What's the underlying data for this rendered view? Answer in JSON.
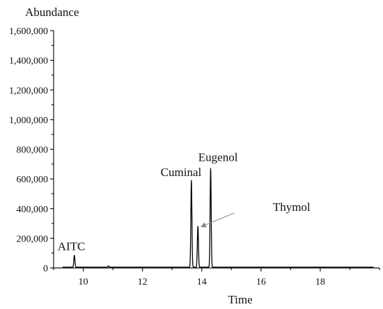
{
  "chart_data": {
    "type": "line",
    "title": "",
    "xlabel": "Time",
    "ylabel": "Abundance",
    "xlim": [
      9,
      20
    ],
    "ylim": [
      0,
      1600000
    ],
    "grid": false,
    "legend": "none",
    "x_ticks": [
      10,
      12,
      14,
      16,
      18
    ],
    "x_tick_labels": [
      "10",
      "12",
      "14",
      "16",
      "18"
    ],
    "y_ticks": [
      0,
      200000,
      400000,
      600000,
      800000,
      1000000,
      1200000,
      1400000,
      1600000
    ],
    "y_tick_labels": [
      "0",
      "200,000",
      "400,000",
      "600,000",
      "800,000",
      "1,000,000",
      "1,200,000",
      "1,400,000",
      "1,600,000"
    ],
    "baseline": 5000,
    "trace_start": 9.3,
    "trace_end": 19.8,
    "peaks": [
      {
        "label": "AITC",
        "time": 9.7,
        "abundance": 85000
      },
      {
        "label": "",
        "time": 10.85,
        "abundance": 14000
      },
      {
        "label": "Cuminal",
        "time": 13.65,
        "abundance": 590000
      },
      {
        "label": "Thymol",
        "time": 13.87,
        "abundance": 280000
      },
      {
        "label": "Eugenol",
        "time": 14.3,
        "abundance": 670000
      }
    ],
    "annotations": [
      {
        "text": "AITC",
        "x": 9.6,
        "y": 120000
      },
      {
        "text": "Cuminal",
        "x": 13.3,
        "y": 620000
      },
      {
        "text": "Eugenol",
        "x": 14.55,
        "y": 720000
      },
      {
        "text": "Thymol",
        "x": 16.4,
        "y": 385000,
        "arrow_to": [
          14.0,
          280000
        ],
        "arrow_from": [
          15.1,
          370000
        ]
      }
    ]
  }
}
